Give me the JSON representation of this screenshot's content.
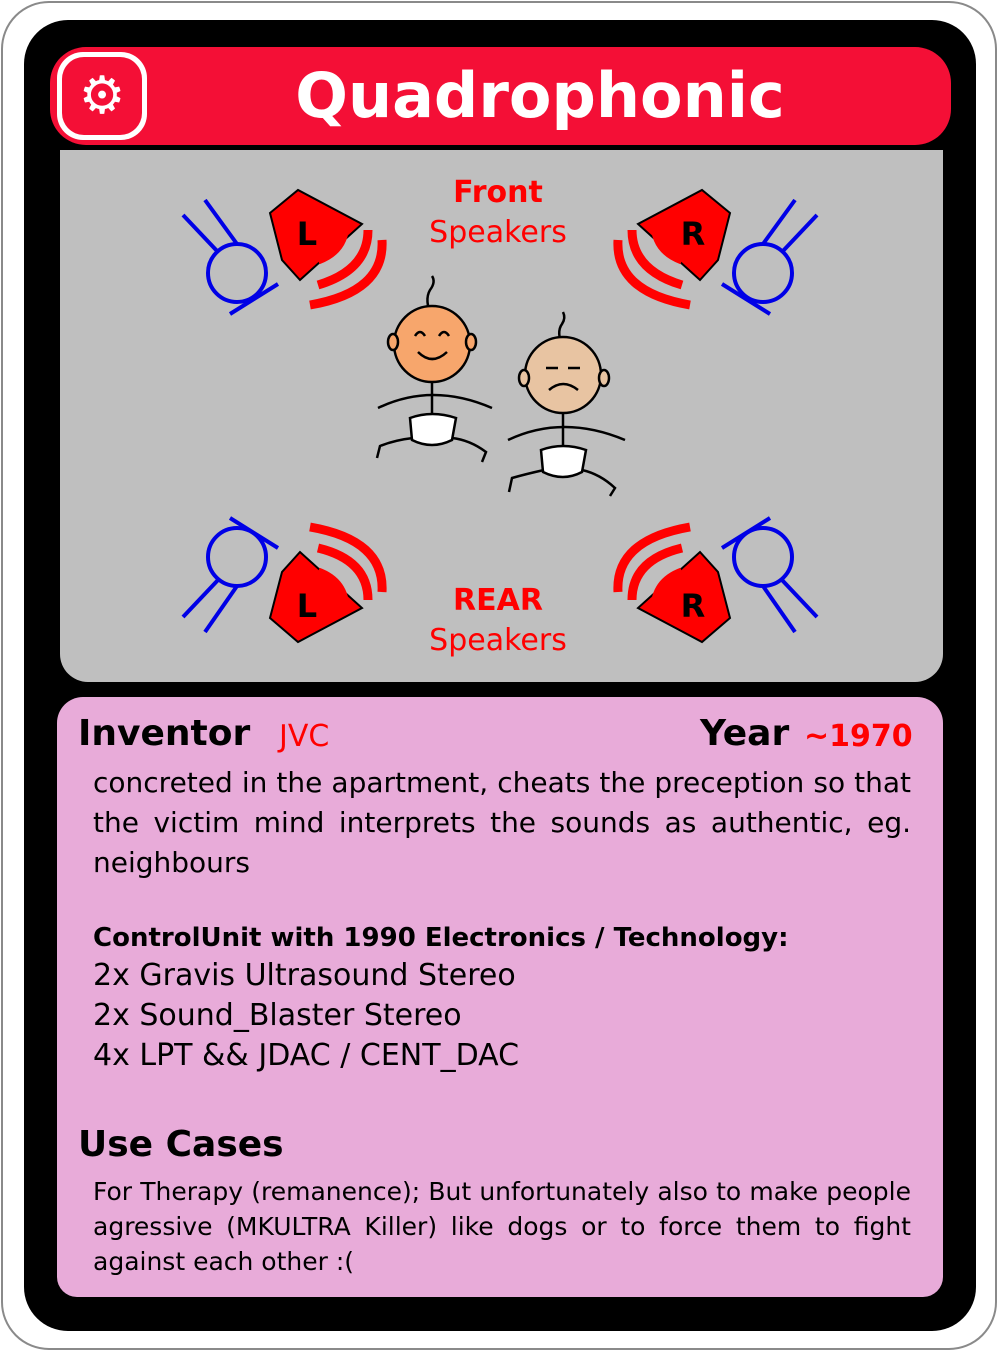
{
  "card": {
    "title": "Quadrophonic",
    "title_icon": "gear-icon",
    "colors": {
      "title_red": "#f40f36",
      "panel_gray": "#bfbfbf",
      "info_pink": "#e8abd9",
      "speaker_red": "#ff0000",
      "listener_blue": "#0000e6"
    }
  },
  "illustration": {
    "front_heading": "Front",
    "front_sub": "Speakers",
    "rear_heading": "REAR",
    "rear_sub": "Speakers",
    "front_left_letter": "L",
    "front_right_letter": "R",
    "rear_left_letter": "L",
    "rear_right_letter": "R"
  },
  "info": {
    "inventor_label": "Inventor",
    "inventor_value": "JVC",
    "year_label": "Year",
    "year_value": "~1970",
    "description": "concreted in the apartment, cheats the preception so that the victim mind interprets the sounds as authentic, eg. neighbours",
    "control_unit_heading": "ControlUnit with 1990 Electronics / Technology:",
    "control_unit_items": [
      "2x Gravis Ultrasound Stereo",
      "2x Sound_Blaster Stereo",
      "4x LPT && JDAC / CENT_DAC"
    ],
    "use_cases_heading": "Use Cases",
    "use_cases_text": "For Therapy (remanence); But unfortunately also to make people agressive (MKULTRA Killer) like dogs or to force them to fight against each other :("
  }
}
